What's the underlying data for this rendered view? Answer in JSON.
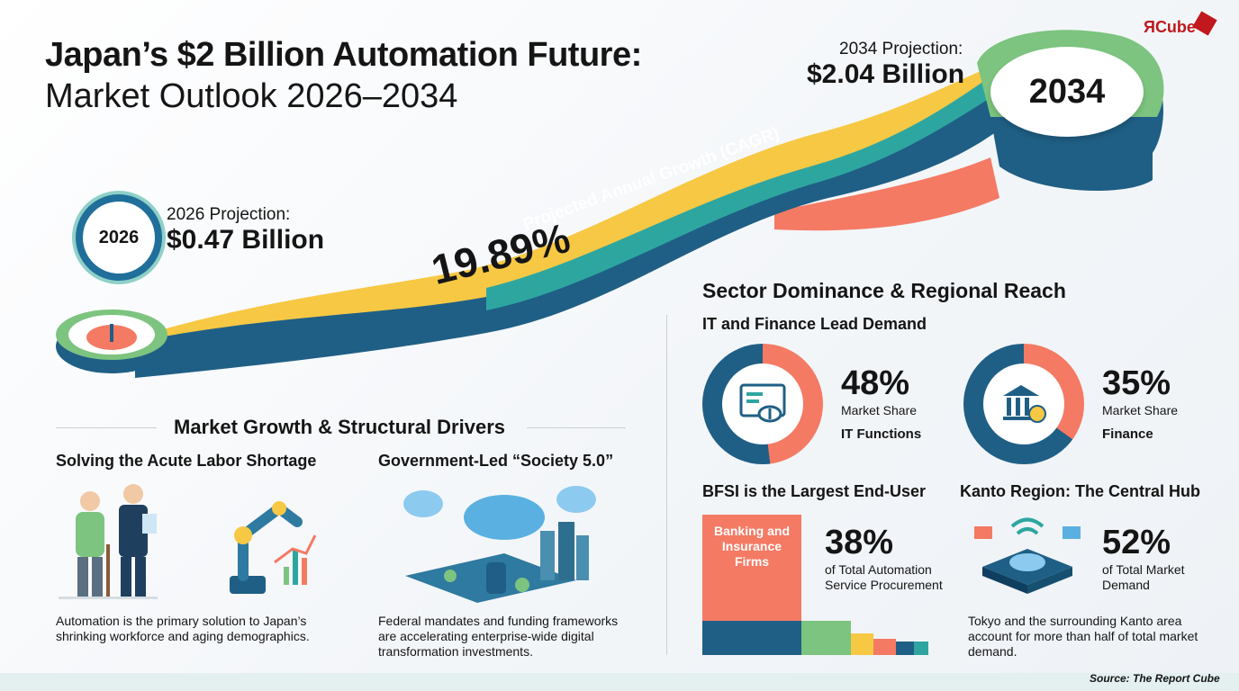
{
  "header": {
    "title_bold": "Japan’s $2 Billion Automation Future:",
    "title_sub": "Market Outlook 2026–2034",
    "logo_text": "ЯCube"
  },
  "timeline": {
    "start_year": "2026",
    "start_label": "2026 Projection:",
    "start_value": "$0.47 Billion",
    "end_year": "2034",
    "end_label": "2034 Projection:",
    "end_value": "$2.04 Billion",
    "cagr_value": "19.89%",
    "cagr_label": "Projected Annual Growth (CAGR)"
  },
  "growth": {
    "heading": "Market Growth & Structural Drivers",
    "labor": {
      "title": "Solving the Acute Labor Shortage",
      "text": "Automation is the primary solution to Japan’s shrinking workforce and aging demographics."
    },
    "society": {
      "title": "Government-Led “Society 5.0”",
      "text": "Federal mandates and funding frameworks are accelerating enterprise-wide digital transformation investments."
    }
  },
  "sector": {
    "heading": "Sector Dominance & Regional Reach",
    "subheading": "IT and Finance Lead Demand",
    "it": {
      "percent": "48%",
      "label": "Market Share",
      "name": "IT Functions",
      "share": 0.48
    },
    "finance": {
      "percent": "35%",
      "label": "Market Share",
      "name": "Finance",
      "share": 0.35
    },
    "bfsi": {
      "title": "BFSI is the Largest End-User",
      "bar_label": "Banking and Insurance Firms",
      "percent": "38%",
      "text": "of Total Automation Service Procurement"
    },
    "kanto": {
      "title": "Kanto Region: The Central Hub",
      "percent": "52%",
      "text": "of Total Market Demand",
      "description": "Tokyo and the surrounding Kanto area account for more than half of total market demand."
    }
  },
  "footer": {
    "source": "Source: The Report Cube"
  },
  "colors": {
    "navy": "#1f5f85",
    "coral": "#f47a64",
    "green": "#7cc47f",
    "yellow": "#f7c844",
    "teal": "#2ea6a0"
  }
}
